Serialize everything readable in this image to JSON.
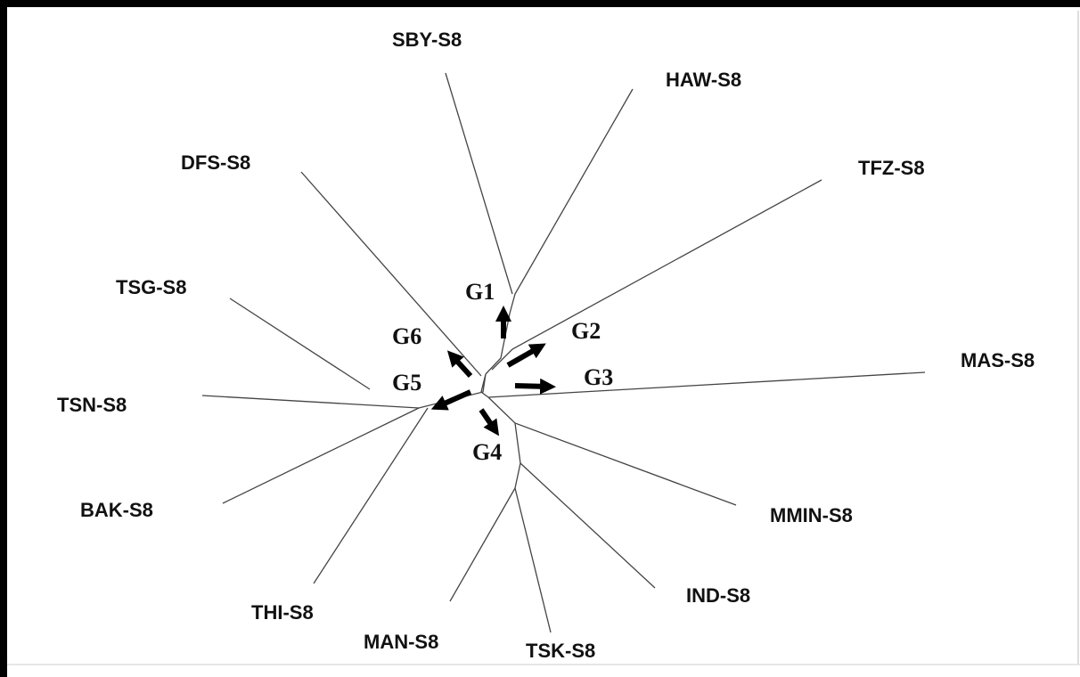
{
  "leaves": [
    "SBY-S8",
    "HAW-S8",
    "TFZ-S8",
    "DFS-S8",
    "TSG-S8",
    "MAS-S8",
    "TSN-S8",
    "BAK-S8",
    "MMIN-S8",
    "IND-S8",
    "THI-S8",
    "MAN-S8",
    "TSK-S8"
  ],
  "groups": [
    "G1",
    "G2",
    "G3",
    "G4",
    "G5",
    "G6"
  ]
}
